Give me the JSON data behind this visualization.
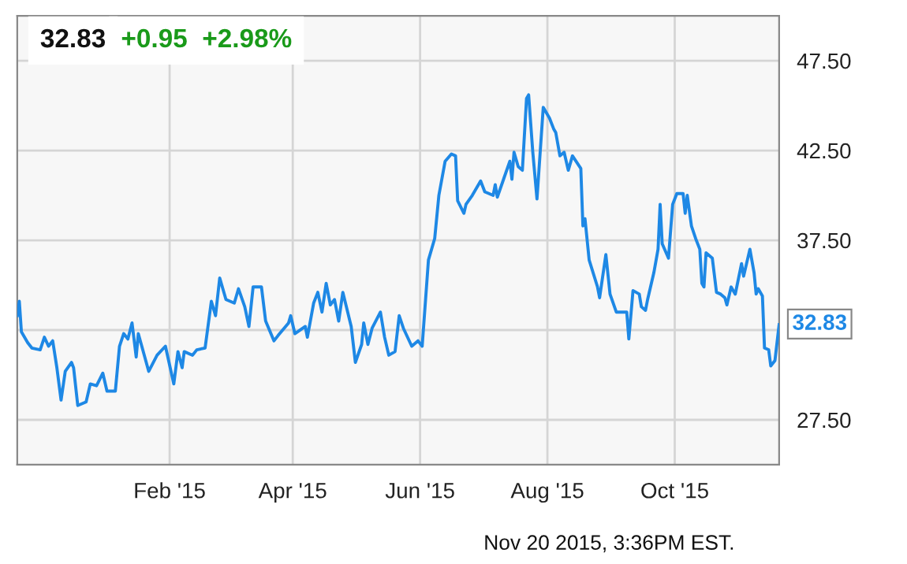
{
  "chart_data": {
    "type": "line",
    "title": "32.83",
    "subtitle": "+0.95  +2.98%",
    "annotations": [
      "Nov 20 2015, 3:36PM EST.",
      {
        "text": "32.83",
        "x": "2015-11-20",
        "y": 32.83
      }
    ],
    "x": [
      "2014-11-20",
      "2014-11-21",
      "2014-11-22",
      "2014-11-25",
      "2014-11-27",
      "2014-12-01",
      "2014-12-03",
      "2014-12-05",
      "2014-12-07",
      "2014-12-09",
      "2014-12-11",
      "2014-12-13",
      "2014-12-16",
      "2014-12-17",
      "2014-12-19",
      "2014-12-23",
      "2014-12-25",
      "2014-12-28",
      "2014-12-31",
      "2015-01-02",
      "2015-01-06",
      "2015-01-08",
      "2015-01-10",
      "2015-01-12",
      "2015-01-14",
      "2015-01-16",
      "2015-01-17",
      "2015-01-22",
      "2015-01-26",
      "2015-01-30",
      "2015-02-03",
      "2015-02-05",
      "2015-02-07",
      "2015-02-08",
      "2015-02-12",
      "2015-02-14",
      "2015-02-18",
      "2015-02-21",
      "2015-02-23",
      "2015-02-25",
      "2015-02-28",
      "2015-03-04",
      "2015-03-06",
      "2015-03-09",
      "2015-03-11",
      "2015-03-13",
      "2015-03-17",
      "2015-03-19",
      "2015-03-23",
      "2015-03-25",
      "2015-03-30",
      "2015-03-31",
      "2015-04-02",
      "2015-04-07",
      "2015-04-08",
      "2015-04-11",
      "2015-04-13",
      "2015-04-15",
      "2015-04-17",
      "2015-04-19",
      "2015-04-21",
      "2015-04-23",
      "2015-04-25",
      "2015-04-29",
      "2015-05-01",
      "2015-05-04",
      "2015-05-05",
      "2015-05-07",
      "2015-05-09",
      "2015-05-13",
      "2015-05-15",
      "2015-05-17",
      "2015-05-20",
      "2015-05-22",
      "2015-05-24",
      "2015-05-28",
      "2015-05-31",
      "2015-06-02",
      "2015-06-05",
      "2015-06-08",
      "2015-06-10",
      "2015-06-13",
      "2015-06-16",
      "2015-06-18",
      "2015-06-19",
      "2015-06-22",
      "2015-06-23",
      "2015-06-26",
      "2015-06-30",
      "2015-07-02",
      "2015-07-06",
      "2015-07-07",
      "2015-07-08",
      "2015-07-11",
      "2015-07-14",
      "2015-07-15",
      "2015-07-16",
      "2015-07-18",
      "2015-07-20",
      "2015-07-22",
      "2015-07-23",
      "2015-07-25",
      "2015-07-27",
      "2015-07-30",
      "2015-08-02",
      "2015-08-04",
      "2015-08-05",
      "2015-08-07",
      "2015-08-09",
      "2015-08-11",
      "2015-08-13",
      "2015-08-17",
      "2015-08-18",
      "2015-08-19",
      "2015-08-21",
      "2015-08-25",
      "2015-08-26",
      "2015-08-29",
      "2015-08-31",
      "2015-09-03",
      "2015-09-08",
      "2015-09-09",
      "2015-09-11",
      "2015-09-14",
      "2015-09-15",
      "2015-09-17",
      "2015-09-18",
      "2015-09-21",
      "2015-09-23",
      "2015-09-24",
      "2015-09-25",
      "2015-09-28",
      "2015-09-30",
      "2015-10-02",
      "2015-10-05",
      "2015-10-06",
      "2015-10-07",
      "2015-10-09",
      "2015-10-11",
      "2015-10-13",
      "2015-10-14",
      "2015-10-15",
      "2015-10-16",
      "2015-10-19",
      "2015-10-21",
      "2015-10-23",
      "2015-10-25",
      "2015-10-26",
      "2015-10-28",
      "2015-10-30",
      "2015-11-02",
      "2015-11-03",
      "2015-11-06",
      "2015-11-08",
      "2015-11-09",
      "2015-11-10",
      "2015-11-12",
      "2015-11-13",
      "2015-11-15",
      "2015-11-16",
      "2015-11-18",
      "2015-11-20"
    ],
    "series": [
      {
        "color": "#1e88e5",
        "values": [
          33.3,
          34.1,
          32.4,
          31.8,
          31.5,
          31.4,
          32.1,
          31.6,
          31.9,
          30.4,
          28.6,
          30.2,
          30.7,
          30.4,
          28.3,
          28.5,
          29.5,
          29.4,
          30.1,
          29.1,
          29.1,
          31.6,
          32.3,
          32.0,
          32.9,
          31.0,
          32.3,
          30.2,
          31.1,
          31.6,
          29.5,
          31.3,
          30.4,
          31.3,
          31.1,
          31.4,
          31.5,
          34.1,
          33.3,
          35.4,
          34.2,
          34.0,
          34.8,
          33.8,
          32.7,
          34.9,
          34.9,
          33.0,
          31.9,
          32.2,
          32.9,
          33.3,
          32.3,
          32.7,
          32.1,
          34.0,
          34.6,
          33.5,
          35.1,
          33.9,
          34.2,
          33.0,
          34.6,
          32.7,
          30.7,
          31.7,
          32.9,
          31.7,
          32.6,
          33.5,
          32.1,
          31.1,
          31.3,
          33.3,
          32.6,
          31.6,
          31.9,
          31.6,
          36.4,
          37.6,
          40.0,
          41.9,
          42.3,
          42.2,
          39.7,
          39.0,
          39.5,
          40.0,
          40.8,
          40.2,
          40.0,
          40.6,
          39.9,
          40.9,
          41.9,
          40.9,
          42.4,
          41.6,
          41.4,
          45.4,
          45.6,
          42.4,
          39.8,
          44.9,
          44.3,
          43.7,
          43.5,
          42.2,
          42.4,
          41.4,
          42.2,
          41.5,
          38.3,
          38.7,
          36.4,
          34.9,
          34.3,
          36.7,
          34.5,
          33.5,
          33.5,
          32.0,
          34.7,
          34.5,
          33.8,
          33.6,
          34.2,
          35.7,
          37.0,
          39.5,
          37.3,
          36.5,
          39.5,
          40.1,
          40.1,
          39.0,
          40.0,
          38.3,
          37.6,
          37.0,
          35.1,
          34.9,
          36.8,
          36.5,
          34.6,
          34.5,
          34.3,
          33.9,
          34.9,
          34.5,
          36.2,
          35.5,
          37.0,
          35.7,
          34.5,
          34.8,
          34.4,
          31.5,
          31.4,
          30.5,
          30.8,
          32.8
        ]
      }
    ],
    "xlim": [
      "2014-11-20",
      "2015-11-20"
    ],
    "xticks": [
      {
        "value": "2015-02-01",
        "label": "Feb '15"
      },
      {
        "value": "2015-04-01",
        "label": "Apr '15"
      },
      {
        "value": "2015-06-01",
        "label": "Jun '15"
      },
      {
        "value": "2015-08-01",
        "label": "Aug '15"
      },
      {
        "value": "2015-10-01",
        "label": "Oct '15"
      }
    ],
    "ylim": [
      25,
      50
    ],
    "yticks": [
      {
        "value": 27.5,
        "label": "27.50"
      },
      {
        "value": 32.5,
        "label": null
      },
      {
        "value": 37.5,
        "label": "37.50"
      },
      {
        "value": 42.5,
        "label": "42.50"
      },
      {
        "value": 47.5,
        "label": "47.50"
      }
    ],
    "grid": true,
    "legend": false,
    "marker": "none",
    "line_style": "solid"
  }
}
